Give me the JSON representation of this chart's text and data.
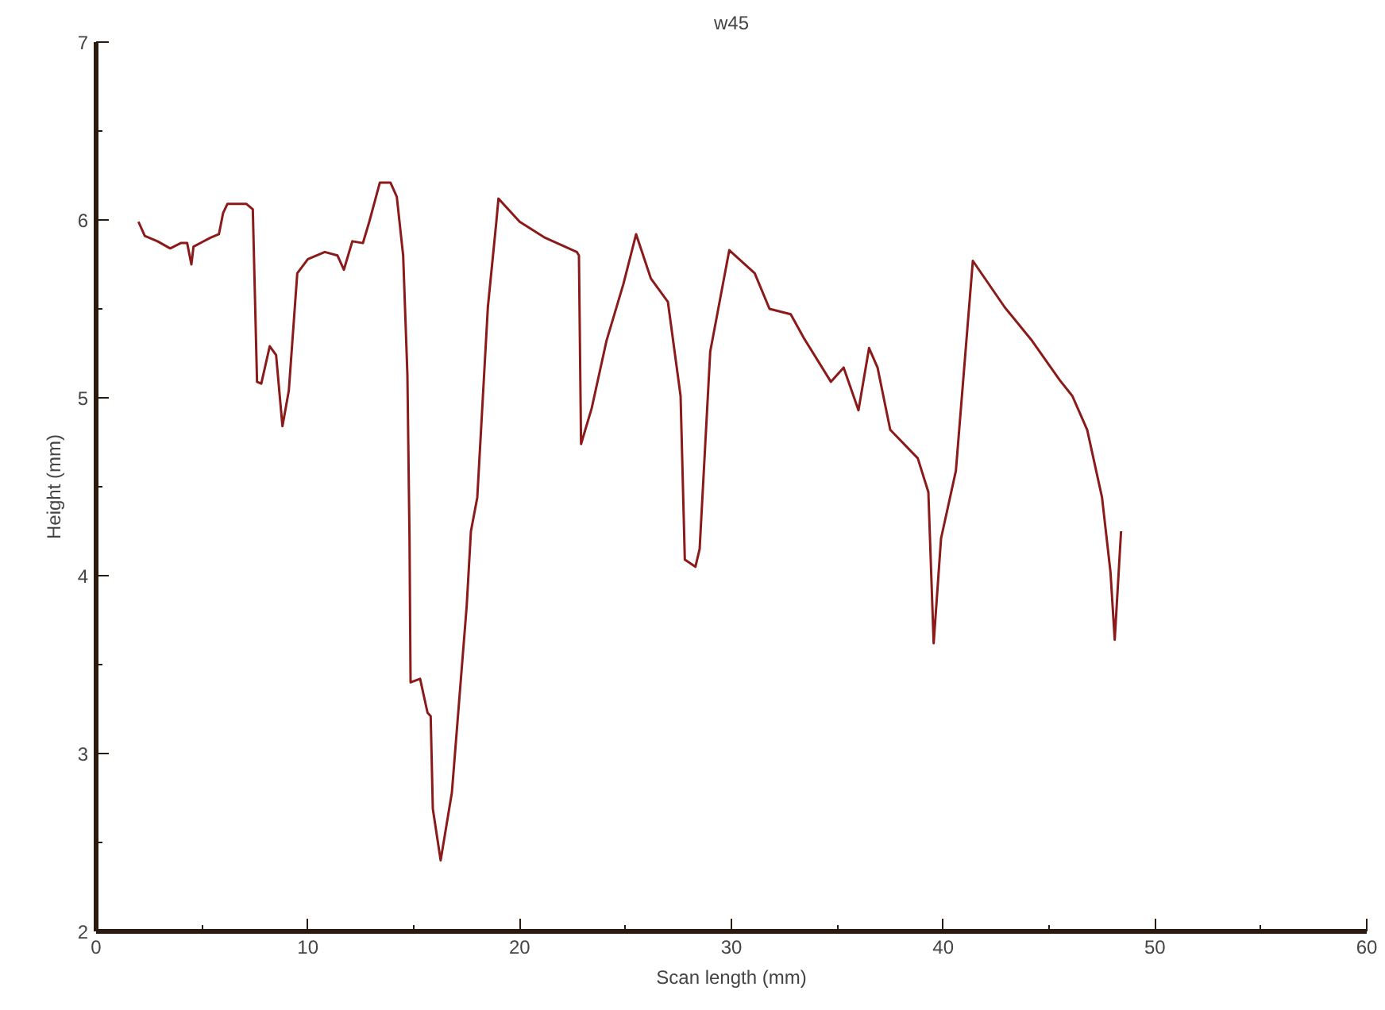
{
  "chart_data": {
    "type": "line",
    "title": "w45",
    "xlabel": "Scan length (mm)",
    "ylabel": "Height (mm)",
    "xlim": [
      0,
      60
    ],
    "ylim": [
      2,
      7
    ],
    "xticks": [
      0,
      {
        "value": 5,
        "label": null
      },
      10,
      {
        "value": 15,
        "label": null
      },
      20,
      {
        "value": 25,
        "label": null
      },
      30,
      {
        "value": 35,
        "label": null
      },
      40,
      {
        "value": 45,
        "label": null
      },
      50,
      {
        "value": 55,
        "label": null
      },
      60
    ],
    "yticks": [
      2,
      {
        "value": 2.5,
        "label": null
      },
      3,
      {
        "value": 3.5,
        "label": null
      },
      4,
      {
        "value": 4.5,
        "label": null
      },
      5,
      {
        "value": 5.5,
        "label": null
      },
      6,
      {
        "value": 6.5,
        "label": null
      },
      7
    ],
    "grid": false,
    "marker": "none",
    "line_style": "solid",
    "series": [
      {
        "color": "#8b1a1a",
        "x": [
          2.0,
          2.3,
          2.9,
          3.5,
          4.0,
          4.3,
          4.5,
          4.6,
          5.4,
          5.8,
          6.0,
          6.2,
          7.1,
          7.4,
          7.6,
          7.8,
          8.2,
          8.5,
          8.8,
          9.1,
          9.5,
          10.0,
          10.8,
          11.4,
          11.7,
          12.1,
          12.6,
          12.9,
          13.4,
          13.9,
          14.2,
          14.5,
          14.7,
          14.8,
          14.85,
          15.3,
          15.65,
          15.8,
          15.9,
          16.27,
          16.8,
          17.5,
          17.7,
          18.0,
          18.5,
          18.9,
          19.0,
          20.0,
          21.2,
          22.7,
          22.8,
          22.9,
          23.4,
          24.1,
          24.9,
          25.5,
          26.2,
          27.0,
          27.6,
          27.8,
          28.3,
          28.5,
          29.0,
          29.9,
          31.1,
          31.8,
          32.8,
          33.4,
          34.7,
          35.3,
          36.0,
          36.5,
          36.9,
          37.5,
          38.8,
          39.3,
          39.55,
          39.9,
          40.6,
          41.4,
          42.9,
          44.2,
          45.5,
          46.1,
          46.8,
          47.5,
          47.9,
          48.1,
          48.4
        ],
        "values": [
          5.99,
          5.91,
          5.88,
          5.84,
          5.87,
          5.87,
          5.75,
          5.85,
          5.9,
          5.92,
          6.04,
          6.09,
          6.09,
          6.06,
          5.09,
          5.08,
          5.29,
          5.24,
          4.84,
          5.04,
          5.7,
          5.78,
          5.82,
          5.8,
          5.72,
          5.88,
          5.87,
          5.99,
          6.21,
          6.21,
          6.13,
          5.8,
          5.13,
          4.21,
          3.4,
          3.42,
          3.23,
          3.21,
          2.69,
          2.4,
          2.78,
          3.83,
          4.25,
          4.44,
          5.51,
          5.99,
          6.12,
          5.99,
          5.9,
          5.82,
          5.8,
          4.74,
          4.94,
          5.32,
          5.64,
          5.92,
          5.67,
          5.54,
          5.01,
          4.09,
          4.05,
          4.15,
          5.26,
          5.83,
          5.7,
          5.5,
          5.47,
          5.34,
          5.09,
          5.17,
          4.93,
          5.28,
          5.17,
          4.82,
          4.66,
          4.47,
          3.62,
          4.21,
          4.59,
          5.77,
          5.51,
          5.32,
          5.1,
          5.01,
          4.82,
          4.44,
          4.02,
          3.64,
          4.25
        ]
      }
    ]
  }
}
